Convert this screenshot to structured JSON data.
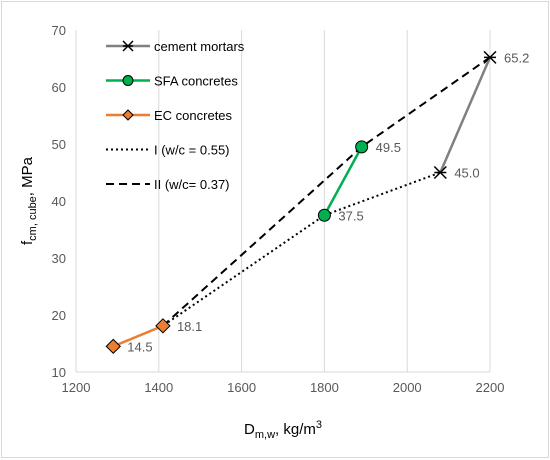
{
  "chart_data": {
    "type": "scatter",
    "xlabel": {
      "main": "D",
      "sub": "m,w",
      "unit": ", kg/m",
      "sup": "3"
    },
    "ylabel": {
      "main": "f",
      "sub": "cm, cube",
      "unit": ", MPa"
    },
    "xlim": [
      1200,
      2200
    ],
    "ylim": [
      10,
      70
    ],
    "xticks": [
      "1200",
      "1400",
      "1600",
      "1800",
      "2000",
      "2200"
    ],
    "yticks": [
      "10",
      "20",
      "30",
      "40",
      "50",
      "60",
      "70"
    ],
    "grid": {
      "vertical": true,
      "horizontal": false
    },
    "legend_position": "top-left",
    "series": [
      {
        "name": "cement mortars",
        "marker": "asterisk",
        "color": "#808080",
        "markerColor": "#000000",
        "points": [
          {
            "x": 2080,
            "y": 45.0
          },
          {
            "x": 2200,
            "y": 65.2
          }
        ]
      },
      {
        "name": "SFA concretes",
        "marker": "circle",
        "color": "#00b050",
        "markerColor": "#00b050",
        "points": [
          {
            "x": 1800,
            "y": 37.5
          },
          {
            "x": 1890,
            "y": 49.5
          }
        ]
      },
      {
        "name": "EC concretes",
        "marker": "diamond",
        "color": "#ed7d31",
        "markerColor": "#ed7d31",
        "points": [
          {
            "x": 1290,
            "y": 14.5
          },
          {
            "x": 1410,
            "y": 18.1
          }
        ]
      },
      {
        "name": "I (w/c = 0.55)",
        "marker": "none",
        "line": "dotted",
        "color": "#000000",
        "points": [
          {
            "x": 1290,
            "y": 14.5
          },
          {
            "x": 1410,
            "y": 18.1
          },
          {
            "x": 1800,
            "y": 37.5
          },
          {
            "x": 2080,
            "y": 45.0
          }
        ]
      },
      {
        "name": "II (w/c= 0.37)",
        "marker": "none",
        "line": "dashed",
        "color": "#000000",
        "points": [
          {
            "x": 1410,
            "y": 18.1
          },
          {
            "x": 1890,
            "y": 49.5
          },
          {
            "x": 2200,
            "y": 65.2
          }
        ]
      }
    ],
    "data_labels": [
      {
        "x": 2200,
        "y": 65.2,
        "text": "65.2"
      },
      {
        "x": 2080,
        "y": 45.0,
        "text": "45.0"
      },
      {
        "x": 1890,
        "y": 49.5,
        "text": "49.5"
      },
      {
        "x": 1800,
        "y": 37.5,
        "text": "37.5"
      },
      {
        "x": 1410,
        "y": 18.1,
        "text": "18.1"
      },
      {
        "x": 1290,
        "y": 14.5,
        "text": "14.5"
      }
    ]
  }
}
